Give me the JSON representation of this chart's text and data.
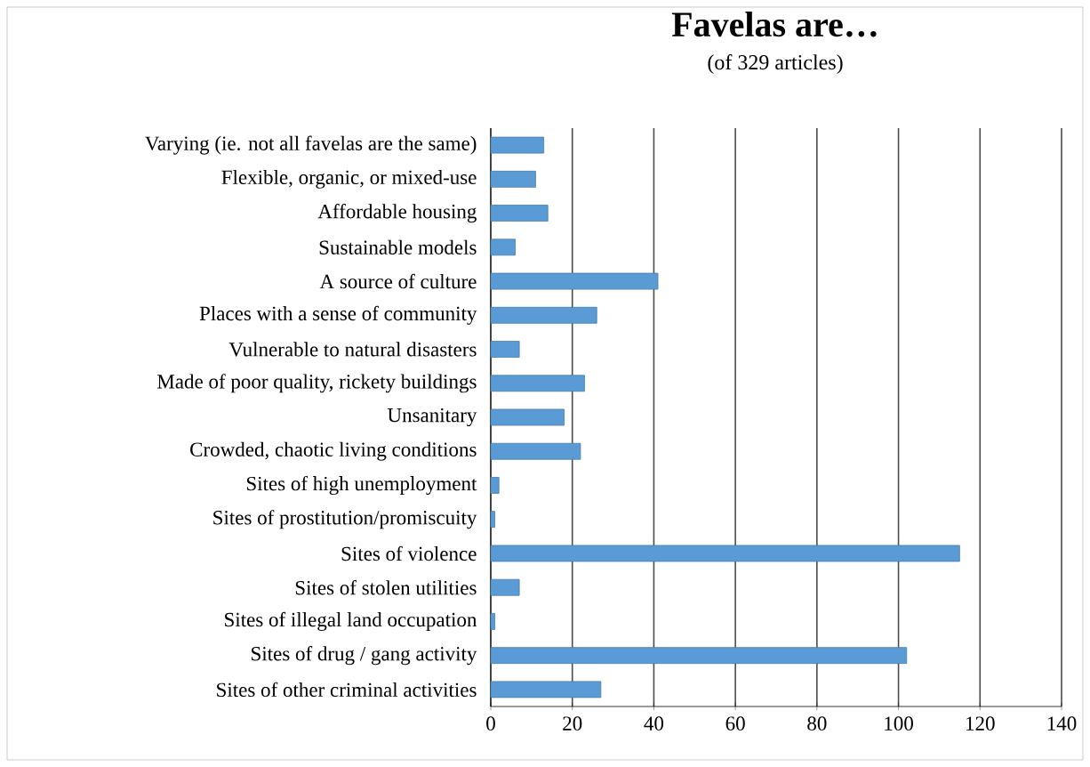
{
  "chart_data": {
    "type": "bar",
    "orientation": "horizontal",
    "title": "Favelas are…",
    "subtitle": "(of 329 articles)",
    "categories": [
      "Varying (ie. not all favelas are the same)",
      "Flexible, organic, or mixed-use",
      "Affordable housing",
      "Sustainable models",
      "A source of culture",
      "Places with a sense of community",
      "Vulnerable to natural disasters",
      "Made of poor quality, rickety buildings",
      "Unsanitary",
      "Crowded, chaotic living conditions",
      "Sites of high unemployment",
      "Sites of prostitution/promiscuity",
      "Sites of violence",
      "Sites of stolen utilities",
      "Sites of illegal land occupation",
      "Sites of drug / gang activity",
      "Sites of other criminal activities"
    ],
    "values": [
      13,
      11,
      14,
      6,
      41,
      26,
      7,
      23,
      18,
      22,
      2,
      1,
      115,
      7,
      1,
      102,
      27
    ],
    "color": "#5b9bd5",
    "xlim": [
      0,
      140
    ],
    "xticks": [
      0,
      20,
      40,
      60,
      80,
      100,
      120,
      140
    ],
    "grid": "x"
  }
}
